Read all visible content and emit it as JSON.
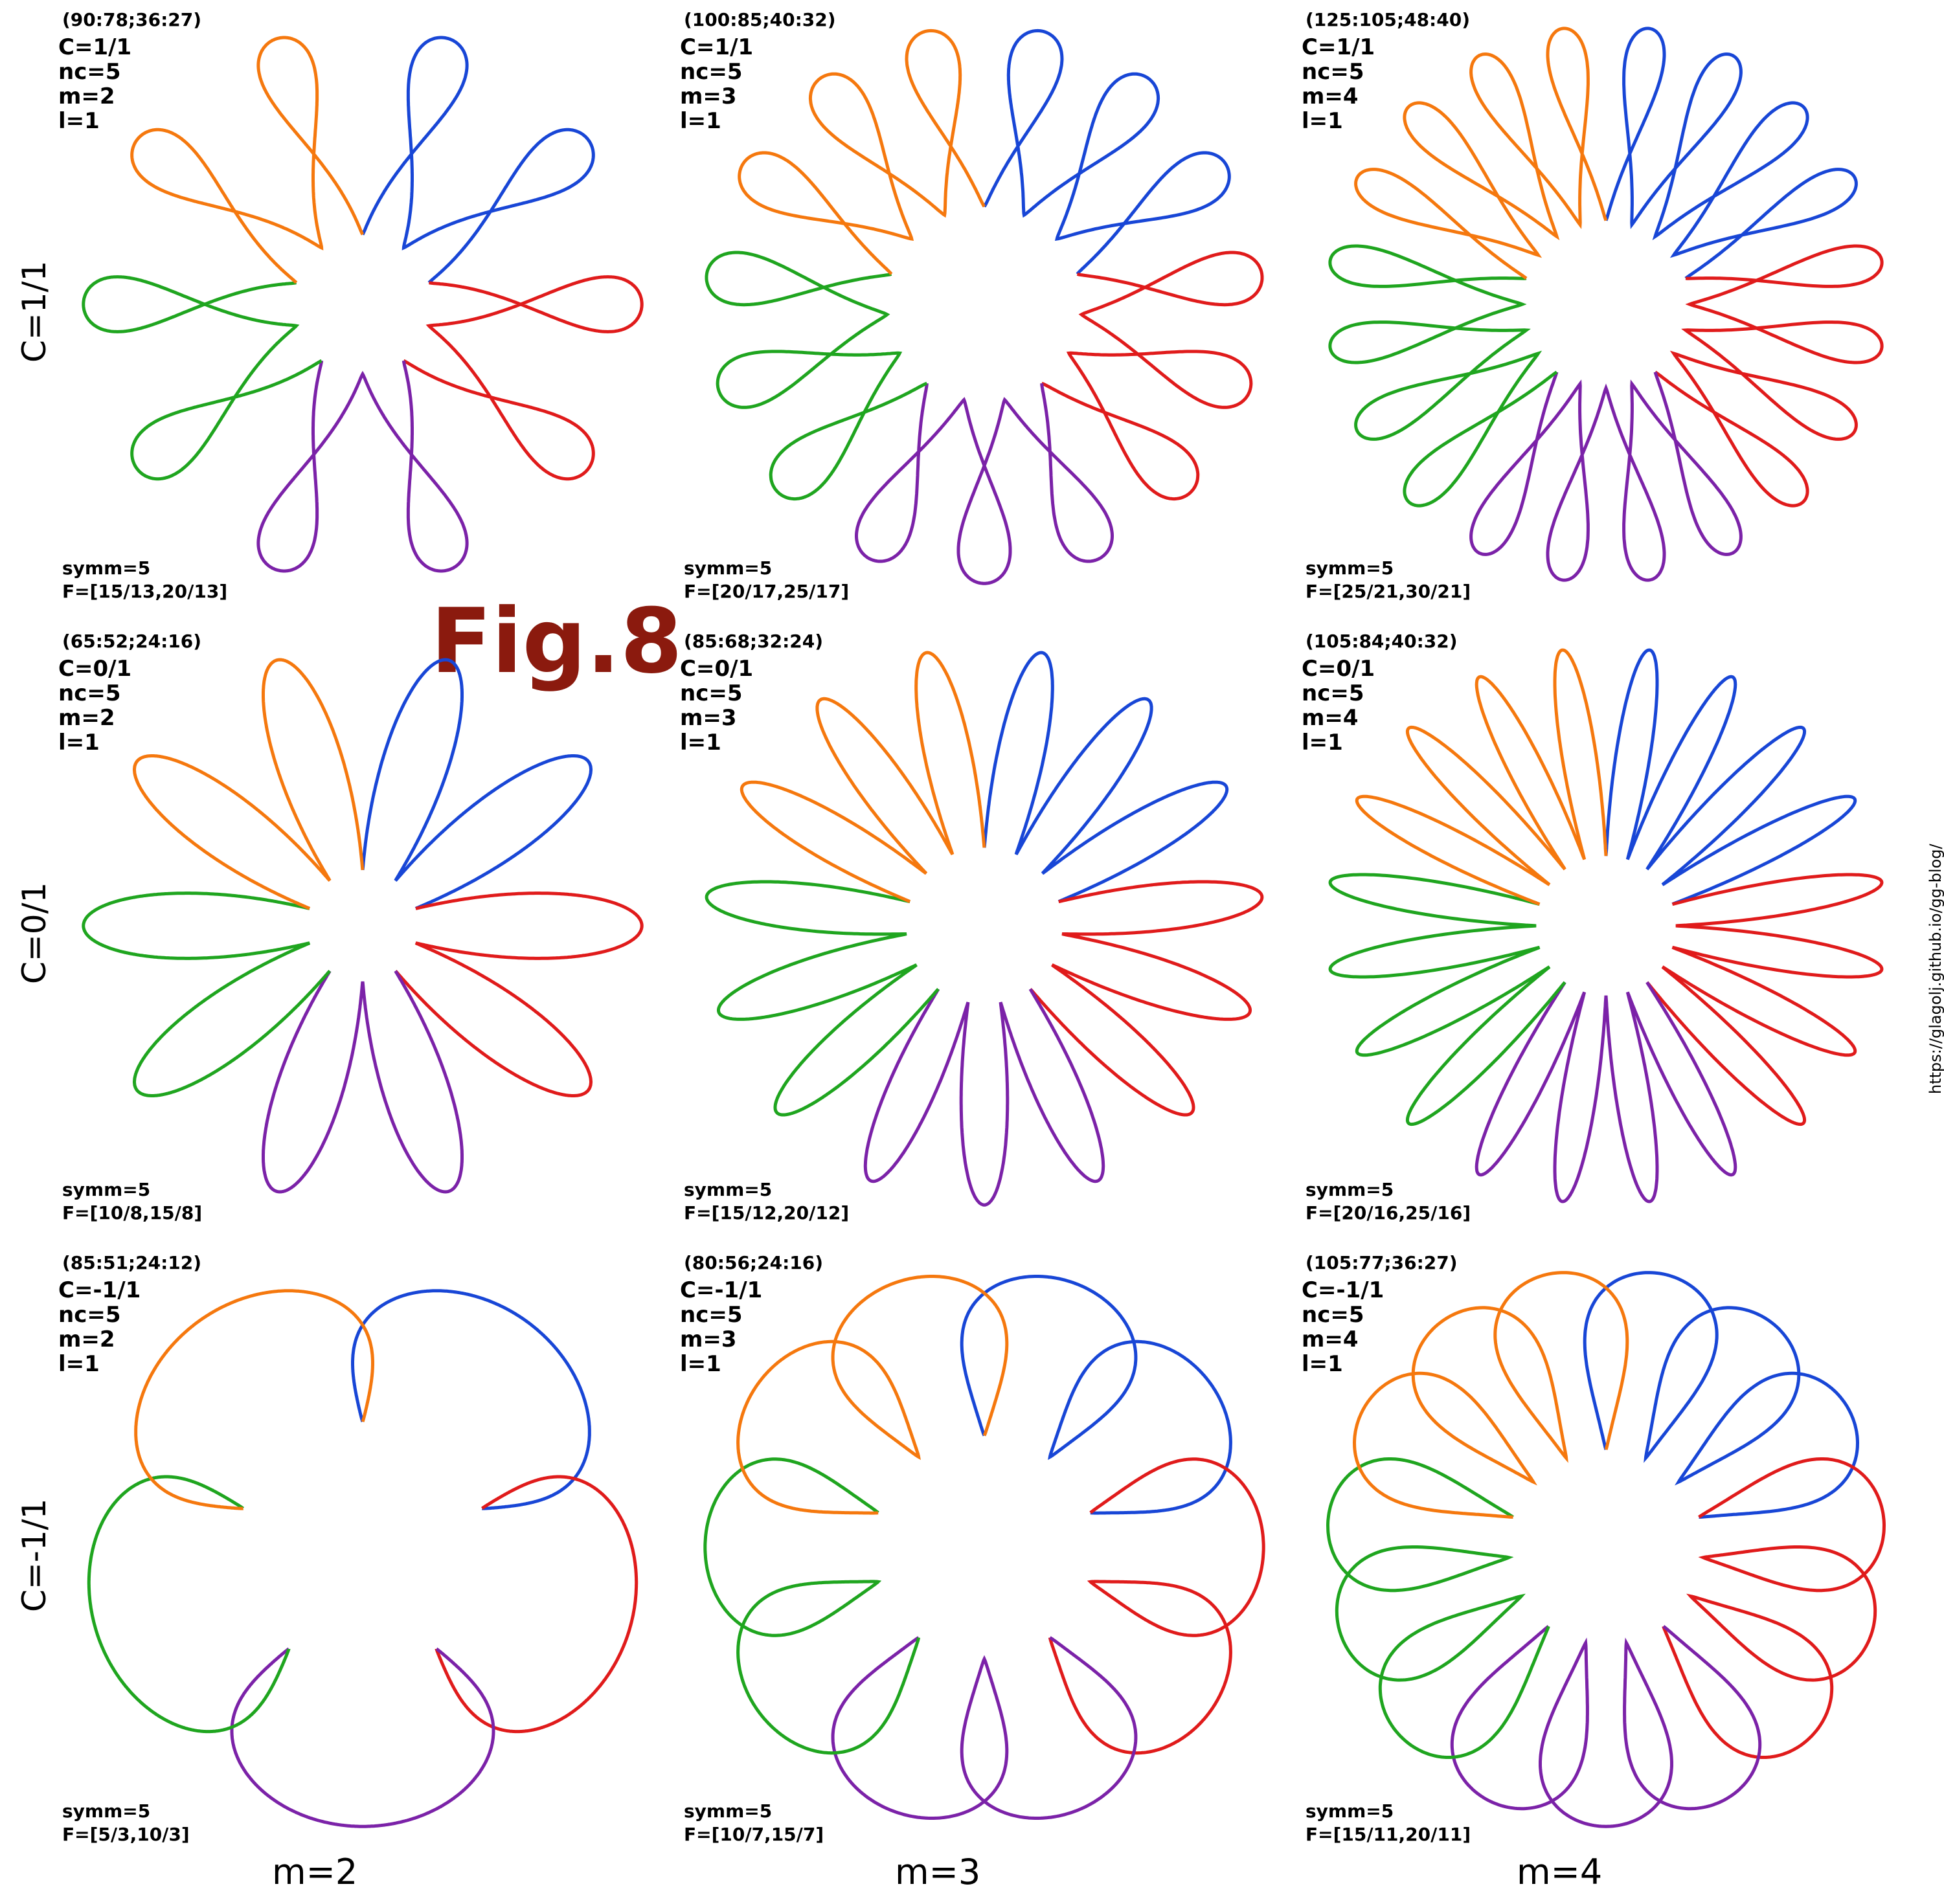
{
  "title": "Fig.8",
  "url": "https://glagolj.github.io/gg-blog/",
  "row_labels": [
    "C=1/1",
    "C=0/1",
    "C=-1/1"
  ],
  "col_labels": [
    "m=2",
    "m=3",
    "m=4"
  ],
  "colors": [
    "#1846d6",
    "#e01b1b",
    "#7b22a8",
    "#1fa51f",
    "#f5780e"
  ],
  "cells": [
    {
      "code": "(90:78;36:27)",
      "c": "C=1/1",
      "nc": "nc=5",
      "m": "m=2",
      "l": "l=1",
      "symm": "symm=5",
      "F": "F=[15/13,20/13]"
    },
    {
      "code": "(100:85;40:32)",
      "c": "C=1/1",
      "nc": "nc=5",
      "m": "m=3",
      "l": "l=1",
      "symm": "symm=5",
      "F": "F=[20/17,25/17]"
    },
    {
      "code": "(125:105;48:40)",
      "c": "C=1/1",
      "nc": "nc=5",
      "m": "m=4",
      "l": "l=1",
      "symm": "symm=5",
      "F": "F=[25/21,30/21]"
    },
    {
      "code": "(65:52;24:16)",
      "c": "C=0/1",
      "nc": "nc=5",
      "m": "m=2",
      "l": "l=1",
      "symm": "symm=5",
      "F": "F=[10/8,15/8]"
    },
    {
      "code": "(85:68;32:24)",
      "c": "C=0/1",
      "nc": "nc=5",
      "m": "m=3",
      "l": "l=1",
      "symm": "symm=5",
      "F": "F=[15/12,20/12]"
    },
    {
      "code": "(105:84;40:32)",
      "c": "C=0/1",
      "nc": "nc=5",
      "m": "m=4",
      "l": "l=1",
      "symm": "symm=5",
      "F": "F=[20/16,25/16]"
    },
    {
      "code": "(85:51;24:12)",
      "c": "C=-1/1",
      "nc": "nc=5",
      "m": "m=2",
      "l": "l=1",
      "symm": "symm=5",
      "F": "F=[5/3,10/3]"
    },
    {
      "code": "(80:56;24:16)",
      "c": "C=-1/1",
      "nc": "nc=5",
      "m": "m=3",
      "l": "l=1",
      "symm": "symm=5",
      "F": "F=[10/7,15/7]"
    },
    {
      "code": "(105:77;36:27)",
      "c": "C=-1/1",
      "nc": "nc=5",
      "m": "m=4",
      "l": "l=1",
      "symm": "symm=5",
      "F": "F=[15/11,20/11]"
    }
  ]
}
